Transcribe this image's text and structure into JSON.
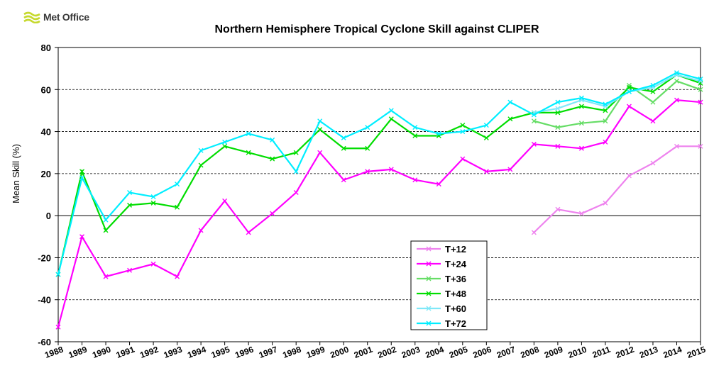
{
  "logo": {
    "text": "Met Office",
    "icon": "met-office-wave-icon",
    "color": "#c6d92e"
  },
  "chart_data": {
    "type": "line",
    "title": "Northern Hemisphere Tropical Cyclone Skill against CLIPER",
    "xlabel": "",
    "ylabel": "Mean Skill (%)",
    "ylim": [
      -60,
      80
    ],
    "yticks": [
      -60,
      -40,
      -20,
      0,
      20,
      40,
      60,
      80
    ],
    "grid": "horizontal dashed at 20, 40, 60",
    "legend_position": "lower-center",
    "categories": [
      "1988",
      "1989",
      "1990",
      "1991",
      "1992",
      "1993",
      "1994",
      "1995",
      "1996",
      "1997",
      "1998",
      "1999",
      "2000",
      "2001",
      "2002",
      "2003",
      "2004",
      "2005",
      "2006",
      "2007",
      "2008",
      "2009",
      "2010",
      "2011",
      "2012",
      "2013",
      "2014",
      "2015"
    ],
    "series": [
      {
        "name": "T+12",
        "color": "#ee82ee",
        "marker": true,
        "values": [
          null,
          null,
          null,
          null,
          null,
          null,
          null,
          null,
          null,
          null,
          null,
          null,
          null,
          null,
          null,
          null,
          null,
          null,
          null,
          null,
          -8,
          3,
          1,
          6,
          19,
          25,
          33,
          33
        ]
      },
      {
        "name": "T+24",
        "color": "#ff00ff",
        "marker": true,
        "values": [
          -53,
          -10,
          -29,
          -26,
          -23,
          -29,
          -7,
          7,
          -8,
          1,
          11,
          30,
          17,
          21,
          22,
          17,
          15,
          27,
          21,
          22,
          34,
          33,
          32,
          35,
          52,
          45,
          55,
          54
        ]
      },
      {
        "name": "T+36",
        "color": "#66dd66",
        "marker": true,
        "values": [
          null,
          null,
          null,
          null,
          null,
          null,
          null,
          null,
          null,
          null,
          null,
          null,
          null,
          null,
          null,
          null,
          null,
          null,
          null,
          null,
          45,
          42,
          44,
          45,
          62,
          54,
          64,
          60
        ]
      },
      {
        "name": "T+48",
        "color": "#00dd00",
        "marker": true,
        "values": [
          -28,
          21,
          -7,
          5,
          6,
          4,
          24,
          33,
          30,
          27,
          30,
          41,
          32,
          32,
          46,
          38,
          38,
          43,
          37,
          46,
          49,
          49,
          52,
          50,
          61,
          59,
          67,
          63
        ]
      },
      {
        "name": "T+60",
        "color": "#7fe8f8",
        "marker": true,
        "values": [
          null,
          null,
          null,
          null,
          null,
          null,
          null,
          null,
          null,
          null,
          null,
          null,
          null,
          null,
          null,
          null,
          null,
          null,
          null,
          null,
          49,
          51,
          55,
          52,
          59,
          61,
          67,
          64
        ]
      },
      {
        "name": "T+72",
        "color": "#00eeff",
        "marker": true,
        "values": [
          -28,
          18,
          -2,
          11,
          9,
          15,
          31,
          35,
          39,
          36,
          21,
          45,
          37,
          42,
          50,
          42,
          39,
          40,
          43,
          54,
          48,
          54,
          56,
          53,
          59,
          62,
          68,
          65
        ]
      }
    ]
  }
}
